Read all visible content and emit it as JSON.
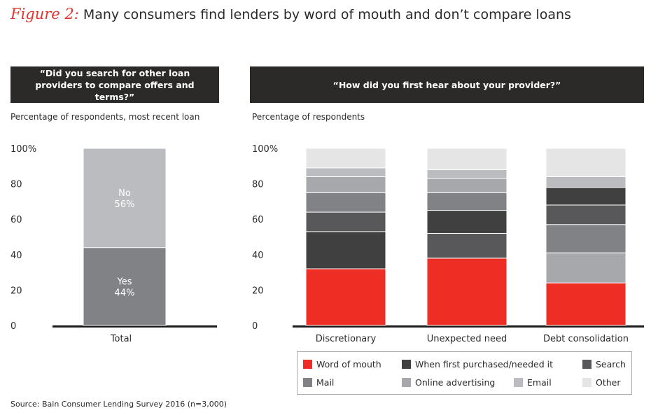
{
  "title": {
    "figure": "Figure 2:",
    "text": "Many consumers find lenders by word of mouth and don’t compare loans"
  },
  "source": "Source: Bain Consumer Lending Survey 2016 (n=3,000)",
  "chart_data": [
    {
      "type": "bar",
      "stacked": true,
      "title": "“Did you search for other loan providers to compare offers and terms?”",
      "subtitle": "Percentage of respondents, most recent loan",
      "categories": [
        "Total"
      ],
      "yticks": [
        "0",
        "20",
        "40",
        "60",
        "80",
        "100%"
      ],
      "ylim": [
        0,
        100
      ],
      "series": [
        {
          "name": "Yes",
          "values": [
            44
          ],
          "label": "Yes\n44%",
          "color": "#818285"
        },
        {
          "name": "No",
          "values": [
            56
          ],
          "label": "No\n56%",
          "color": "#bbbcbf"
        }
      ]
    },
    {
      "type": "bar",
      "stacked": true,
      "title": "“How did you first hear about your provider?”",
      "subtitle": "Percentage of respondents",
      "categories": [
        "Discretionary",
        "Unexpected need",
        "Debt consolidation"
      ],
      "yticks": [
        "0",
        "20",
        "40",
        "60",
        "80",
        "100%"
      ],
      "ylim": [
        0,
        100
      ],
      "legend": [
        {
          "name": "Word of mouth",
          "color": "#ee2d24"
        },
        {
          "name": "When first purchased/needed it",
          "color": "#404040"
        },
        {
          "name": "Search",
          "color": "#58585a"
        },
        {
          "name": "Mail",
          "color": "#818285"
        },
        {
          "name": "Online advertising",
          "color": "#a7a8ab"
        },
        {
          "name": "Email",
          "color": "#bbbcbf"
        },
        {
          "name": "Other",
          "color": "#e5e5e5"
        }
      ],
      "legend_placement": "bottom",
      "stacks": [
        {
          "category": "Discretionary",
          "segments": [
            [
              "Word of mouth",
              32
            ],
            [
              "When first purchased/needed it",
              21
            ],
            [
              "Search",
              11
            ],
            [
              "Mail",
              11
            ],
            [
              "Online advertising",
              9
            ],
            [
              "Email",
              5
            ],
            [
              "Other",
              11
            ]
          ]
        },
        {
          "category": "Unexpected need",
          "segments": [
            [
              "Word of mouth",
              38
            ],
            [
              "Search",
              14
            ],
            [
              "When first purchased/needed it",
              13
            ],
            [
              "Mail",
              10
            ],
            [
              "Online advertising",
              8
            ],
            [
              "Email",
              5
            ],
            [
              "Other",
              12
            ]
          ]
        },
        {
          "category": "Debt consolidation",
          "segments": [
            [
              "Word of mouth",
              24
            ],
            [
              "Online advertising",
              17
            ],
            [
              "Mail",
              16
            ],
            [
              "Search",
              11
            ],
            [
              "When first purchased/needed it",
              10
            ],
            [
              "Email",
              6
            ],
            [
              "Other",
              16
            ]
          ]
        }
      ]
    }
  ]
}
